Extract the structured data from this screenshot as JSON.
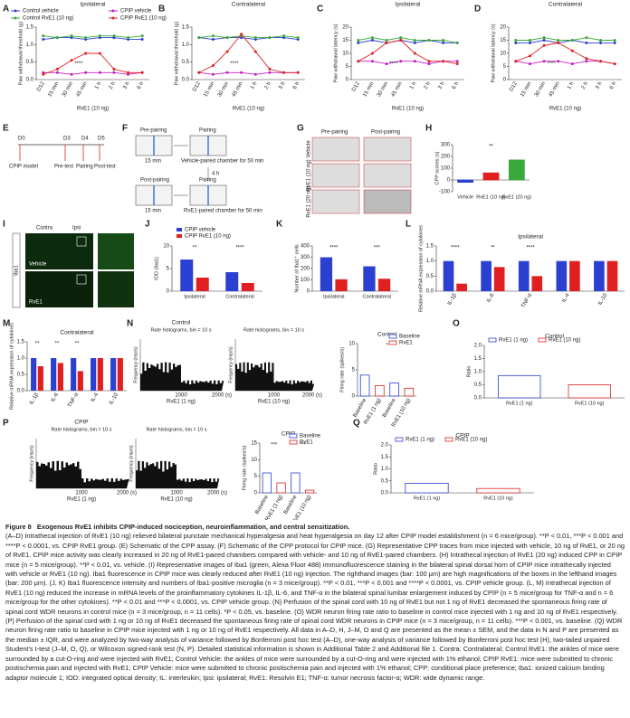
{
  "panel_letters": [
    "A",
    "B",
    "C",
    "D",
    "E",
    "F",
    "G",
    "H",
    "I",
    "J",
    "K",
    "L",
    "M",
    "N",
    "O",
    "P",
    "Q"
  ],
  "chart_data": [
    {
      "type": "line",
      "title": "Ipsilateral",
      "ylabel": "Paw withdrawal threshold (g)",
      "xlabel": "RvE1 (10 ng)",
      "categories": [
        "D12",
        "15 min",
        "30 min",
        "45 min",
        "1 h",
        "2 h",
        "3 h",
        "6 h"
      ],
      "ylim": [
        0,
        1.5
      ],
      "yticks": [
        {
          "value": 0,
          "label": "0.0"
        },
        {
          "value": 0.5,
          "label": "0.5"
        },
        {
          "value": 1,
          "label": "1.0"
        },
        {
          "value": 1.5,
          "label": "1.5"
        }
      ],
      "annotations": [
        "****"
      ],
      "series": [
        {
          "name": "Control vehicle",
          "color": "#2b3fd0",
          "values": [
            1.15,
            1.2,
            1.2,
            1.15,
            1.2,
            1.2,
            1.15,
            1.15
          ]
        },
        {
          "name": "Control RvE1 (10 ng)",
          "color": "#3aa83a",
          "values": [
            1.25,
            1.2,
            1.25,
            1.2,
            1.25,
            1.25,
            1.2,
            1.25
          ]
        },
        {
          "name": "CPIP vehicle",
          "color": "#c020c0",
          "values": [
            0.2,
            0.2,
            0.15,
            0.2,
            0.2,
            0.2,
            0.15,
            0.2
          ]
        },
        {
          "name": "CPIP RvE1 (10 ng)",
          "color": "#e02020",
          "values": [
            0.15,
            0.3,
            0.55,
            0.75,
            0.75,
            0.3,
            0.2,
            0.2
          ]
        }
      ]
    },
    {
      "type": "line",
      "title": "Contralateral",
      "ylabel": "Paw withdrawal threshold (g)",
      "xlabel": "RvE1 (10 ng)",
      "categories": [
        "D12",
        "15 min",
        "30 min",
        "45 min",
        "1 h",
        "2 h",
        "3 h",
        "6 h"
      ],
      "ylim": [
        0,
        1.5
      ],
      "yticks": [
        {
          "value": 0,
          "label": "0.0"
        },
        {
          "value": 0.5,
          "label": "0.5"
        },
        {
          "value": 1,
          "label": "1.0"
        },
        {
          "value": 1.5,
          "label": "1.5"
        }
      ],
      "annotations": [
        "****"
      ],
      "series": [
        {
          "color": "#2b3fd0",
          "values": [
            1.2,
            1.15,
            1.2,
            1.2,
            1.15,
            1.2,
            1.2,
            1.15
          ]
        },
        {
          "color": "#3aa83a",
          "values": [
            1.2,
            1.25,
            1.2,
            1.25,
            1.2,
            1.2,
            1.25,
            1.2
          ]
        },
        {
          "color": "#c020c0",
          "values": [
            0.2,
            0.15,
            0.2,
            0.2,
            0.15,
            0.2,
            0.2,
            0.2
          ]
        },
        {
          "color": "#e02020",
          "values": [
            0.2,
            0.4,
            0.8,
            1.3,
            0.8,
            0.3,
            0.2,
            0.2
          ]
        }
      ]
    },
    {
      "type": "line",
      "title": "Ipsilateral",
      "ylabel": "Paw withdrawal latency (s)",
      "xlabel": "RvE1 (10 ng)",
      "categories": [
        "D12",
        "15 min",
        "30 min",
        "45 min",
        "1 h",
        "2 h",
        "3 h",
        "6 h"
      ],
      "ylim": [
        0,
        20
      ],
      "yticks": [
        0,
        5,
        10,
        15,
        20
      ],
      "annotations": [
        "****"
      ],
      "series": [
        {
          "color": "#2b3fd0",
          "values": [
            14,
            15,
            14,
            15,
            14,
            15,
            14,
            14
          ]
        },
        {
          "color": "#3aa83a",
          "values": [
            15,
            16,
            15,
            16,
            15,
            15,
            15,
            14
          ]
        },
        {
          "color": "#c020c0",
          "values": [
            7,
            7,
            6,
            7,
            7,
            6,
            7,
            7
          ]
        },
        {
          "color": "#e02020",
          "values": [
            7,
            10,
            14,
            15,
            10,
            7,
            7,
            6
          ]
        }
      ]
    },
    {
      "type": "line",
      "title": "Contralateral",
      "ylabel": "Paw withdrawal latency (s)",
      "xlabel": "RvE1 (10 ng)",
      "categories": [
        "D12",
        "15 min",
        "30 min",
        "45 min",
        "1 h",
        "2 h",
        "3 h",
        "6 h"
      ],
      "ylim": [
        0,
        20
      ],
      "yticks": [
        0,
        5,
        10,
        15,
        20
      ],
      "annotations": [
        "****"
      ],
      "series": [
        {
          "color": "#2b3fd0",
          "values": [
            14,
            14,
            15,
            14,
            15,
            14,
            14,
            14
          ]
        },
        {
          "color": "#3aa83a",
          "values": [
            15,
            15,
            16,
            15,
            15,
            16,
            15,
            15
          ]
        },
        {
          "color": "#c020c0",
          "values": [
            7,
            6,
            7,
            7,
            6,
            7,
            7,
            6
          ]
        },
        {
          "color": "#e02020",
          "values": [
            7,
            9,
            13,
            14,
            11,
            8,
            7,
            6
          ]
        }
      ]
    },
    {
      "type": "bar",
      "ylabel": "CPP scores (s)",
      "categories": [
        "Vehicle",
        "RvE1 (10 ng)",
        "RvE1 (20 ng)"
      ],
      "values": [
        -20,
        60,
        170
      ],
      "colors": [
        "#2b3fd0",
        "#e02020",
        "#3aa83a"
      ],
      "ylim": [
        -100,
        300
      ],
      "yticks": [
        -100,
        0,
        100,
        200,
        300
      ],
      "annotations": [
        "**"
      ]
    },
    {
      "type": "bar",
      "ylabel": "IOD (Iba1)",
      "categories": [
        "Ipsilateral",
        "Contralateral"
      ],
      "ylim": [
        0,
        10
      ],
      "yticks": [
        0,
        5,
        10
      ],
      "annotations": [
        "**",
        "****"
      ],
      "series": [
        {
          "name": "CPIP vehicle",
          "color": "#2b3fd0",
          "values": [
            7,
            4.2
          ]
        },
        {
          "name": "CPIP RvE1 (10 ng)",
          "color": "#e02020",
          "values": [
            3,
            1.8
          ]
        }
      ]
    },
    {
      "type": "bar",
      "ylabel": "Number of Iba1⁺ cells",
      "categories": [
        "Ipsilateral",
        "Contralateral"
      ],
      "ylim": [
        0,
        400
      ],
      "yticks": [
        0,
        100,
        200,
        300,
        400
      ],
      "annotations": [
        "****",
        "***"
      ],
      "series": [
        {
          "color": "#2b3fd0",
          "values": [
            300,
            220
          ]
        },
        {
          "color": "#e02020",
          "values": [
            105,
            110
          ]
        }
      ]
    },
    {
      "type": "bar",
      "title": "Ipsilateral",
      "ylabel": "Relative mRNA expression of cytokines",
      "categories": [
        "IL-1β",
        "IL-6",
        "TNF-α",
        "IL-4",
        "IL-10"
      ],
      "ylim": [
        0,
        1.5
      ],
      "yticks": [
        {
          "value": 0,
          "label": "0.0"
        },
        {
          "value": 0.5,
          "label": "0.5"
        },
        {
          "value": 1,
          "label": "1.0"
        },
        {
          "value": 1.5,
          "label": "1.5"
        }
      ],
      "annotations": [
        "****",
        "**",
        "****"
      ],
      "series": [
        {
          "color": "#2b3fd0",
          "values": [
            1,
            1,
            1,
            1,
            1
          ]
        },
        {
          "color": "#e02020",
          "values": [
            0.25,
            0.8,
            0.5,
            1,
            1
          ]
        }
      ]
    },
    {
      "type": "bar",
      "title": "Contralateral",
      "ylabel": "Relative mRNA expression of cytokines",
      "categories": [
        "IL-1β",
        "IL-6",
        "TNF-α",
        "IL-4",
        "IL-10"
      ],
      "ylim": [
        0,
        1.5
      ],
      "yticks": [
        {
          "value": 0,
          "label": "0.0"
        },
        {
          "value": 0.5,
          "label": "0.5"
        },
        {
          "value": 1,
          "label": "1.0"
        },
        {
          "value": 1.5,
          "label": "1.5"
        }
      ],
      "annotations": [
        "**",
        "**",
        "**"
      ],
      "series": [
        {
          "color": "#2b3fd0",
          "values": [
            1,
            1,
            1,
            1,
            1
          ]
        },
        {
          "color": "#e02020",
          "values": [
            0.75,
            0.85,
            0.6,
            1,
            1
          ]
        }
      ]
    },
    {
      "type": "bar",
      "title": "Control",
      "ylabel": "Firing rate (spikes/s)",
      "categories": [
        "Baseline",
        "RvE1 (1 ng)",
        "Baseline",
        "RvE1 (10 ng)"
      ],
      "values": [
        4,
        2,
        2.5,
        1.5
      ],
      "colors": [
        "#2b3fd0",
        "#e02020",
        "#2b3fd0",
        "#e02020"
      ],
      "hollow": true,
      "ylim": [
        0,
        10
      ],
      "yticks": [
        0,
        5,
        10
      ],
      "annotations": [
        "*"
      ],
      "legend": [
        {
          "name": "Baseline",
          "color": "#2b3fd0"
        },
        {
          "name": "RvE1",
          "color": "#e02020"
        }
      ]
    },
    {
      "type": "bar",
      "title": "Control",
      "ylabel": "Ratio",
      "categories": [
        "RvE1 (1 ng)",
        "RvE1 (10 ng)"
      ],
      "values": [
        0.85,
        0.5
      ],
      "colors": [
        "#2b3fd0",
        "#e02020"
      ],
      "hollow": true,
      "ylim": [
        0,
        2
      ],
      "yticks": [
        {
          "value": 0,
          "label": "0.0"
        },
        {
          "value": 0.5,
          "label": "0.5"
        },
        {
          "value": 1,
          "label": "1.0"
        },
        {
          "value": 1.5,
          "label": "1.5"
        },
        {
          "value": 2,
          "label": "2.0"
        }
      ],
      "legend": [
        {
          "name": "RvE1 (1 ng)",
          "color": "#2b3fd0"
        },
        {
          "name": "RvE1 (10 ng)",
          "color": "#e02020"
        }
      ]
    },
    {
      "type": "bar",
      "title": "CPIP",
      "ylabel": "Firing rate (spikes/s)",
      "categories": [
        "Baseline",
        "RvE1 (1 ng)",
        "Baseline",
        "RvE1 (10 ng)"
      ],
      "values": [
        6,
        3,
        6,
        0.8
      ],
      "colors": [
        "#2b3fd0",
        "#e02020",
        "#2b3fd0",
        "#e02020"
      ],
      "hollow": true,
      "ylim": [
        0,
        15
      ],
      "yticks": [
        0,
        5,
        10,
        15
      ],
      "annotations": [
        "***",
        "***"
      ],
      "legend": [
        {
          "name": "Baseline",
          "color": "#2b3fd0"
        },
        {
          "name": "RvE1",
          "color": "#e02020"
        }
      ]
    },
    {
      "type": "bar",
      "title": "CPIP",
      "ylabel": "Ratio",
      "categories": [
        "RvE1 (1 ng)",
        "RvE1 (10 ng)"
      ],
      "values": [
        0.4,
        0.18
      ],
      "colors": [
        "#2b3fd0",
        "#e02020"
      ],
      "hollow": true,
      "ylim": [
        0,
        2
      ],
      "yticks": [
        {
          "value": 0,
          "label": "0.0"
        },
        {
          "value": 0.5,
          "label": "0.5"
        },
        {
          "value": 1,
          "label": "1.0"
        },
        {
          "value": 1.5,
          "label": "1.5"
        },
        {
          "value": 2,
          "label": "2.0"
        }
      ],
      "legend": [
        {
          "name": "RvE1 (1 ng)",
          "color": "#2b3fd0"
        },
        {
          "name": "RvE1 (10 ng)",
          "color": "#e02020"
        }
      ]
    }
  ],
  "histograms": [
    {
      "group": "Control",
      "title": "Rate histograms, bin = 10 s",
      "ylabel": "Frequency (imp/s)",
      "xticks": [
        "1000",
        "2000 (s)"
      ],
      "xlabel": "RvE1 (1 ng)"
    },
    {
      "group": "Control",
      "title": "Rate histograms, bin = 10 s",
      "ylabel": "Frequency (imp/s)",
      "xticks": [
        "1000",
        "2000 (s)"
      ],
      "xlabel": "RvE1 (10 ng)"
    },
    {
      "group": "CPIP",
      "title": "Rate histograms, bin = 10 s",
      "ylabel": "Frequency (imp/s)",
      "xticks": [
        "1000",
        "2000 (s)"
      ],
      "xlabel": "RvE1 (1 ng)"
    },
    {
      "group": "CPIP",
      "title": "Rate histograms, bin = 10 s",
      "ylabel": "Frequency (imp/s)",
      "xticks": [
        "1000",
        "2000 (s)"
      ],
      "xlabel": "RvE1 (10 ng)"
    }
  ],
  "diagrams": {
    "E": {
      "days": [
        "D0",
        "D3",
        "D4",
        "D5"
      ],
      "steps": [
        "CPIP model",
        "Pre-test",
        "Pairing",
        "Post-test"
      ]
    },
    "F": {
      "pre": "Pre-pairing",
      "pairing": "Pairing",
      "t1": "15 min",
      "vehicle": "Vehicle-paired chamber for 50 min",
      "gap": "4 h",
      "post": "Post-pairing",
      "pairing2": "Pairing",
      "t2": "15 min",
      "rve1": "RvE1-paired chamber for 50 min"
    },
    "G": {
      "cols": [
        "Pre-pairing",
        "Post-pairing"
      ],
      "rows": [
        "Vehicle",
        "RvE1 (10 ng)",
        "RvE1 (20 ng)"
      ]
    },
    "I": {
      "cols": [
        "Contra",
        "Ipsi"
      ],
      "stain": "Iba1",
      "rows": [
        "Vehicle",
        "RvE1"
      ]
    }
  },
  "caption": {
    "label": "Figure 8",
    "title": "Exogenous RvE1 inhibits CPIP-induced nociception, neuroinflammation, and central sensitization.",
    "body": "(A–D) Intrathecal injection of RvE1 (10 ng) relieved bilateral punctate mechanical hyperalgesia and heat hyperalgesia on day 12 after CPIP model establishment (n = 6 mice/group). **P < 0.01, ***P < 0.001 and ****P < 0.0001, vs. CPIP RvE1 group. (E) Schematic of the CPP assay. (F) Schematic of the CPP protocol for CPIP mice. (G) Representative CPP traces from mice injected with vehicle, 10 ng of RvE1, or 20 ng of RvE1. CPIP mice activity was clearly increased in 20 ng of RvE1-paired chambers compared with vehicle- and 10 ng of RvE1-paired chambers. (H) Intrathecal injection of RvE1 (20 ng) induced CPP in CPIP mice (n = 5 mice/group). **P < 0.01, vs. vehicle. (I) Representative images of Iba1 (green, Alexa Fluor 488) immunofluorescence staining in the bilateral spinal dorsal horn of CPIP mice intrathecally injected with vehicle or RvE1 (10 ng). Iba1 fluorescence in CPIP mice was clearly reduced after RvE1 (10 ng) injection. The righthand images (bar: 100 μm) are high magnifications of the boxes in the lefthand images (bar: 200 μm). (J, K) Iba1 fluorescence intensity and numbers of Iba1-positive microglia (n = 3 mice/group). **P < 0.01, ***P < 0.001 and ****P < 0.0001, vs. CPIP vehicle group. (L, M) Intrathecal injection of RvE1 (10 ng) reduced the increase in mRNA levels of the proinflammatory cytokines IL-1β, IL-6, and TNF-α in the bilateral spinal lumbar enlargement induced by CPIP (n = 5 mice/group for TNF-α and n = 6 mice/group for the other cytokines). **P < 0.01 and ***P < 0.0001, vs. CPIP vehicle group. (N) Perfusion of the spinal cord with 10 ng of RvE1 but not 1 ng of RvE1 decreased the spontaneous firing rate of spinal cord WDR neurons in control mice (n = 3 mice/group, n = 11 cells). *P < 0.05, vs. baseline. (O) WDR neuron firing rate ratio to baseline in control mice injected with 1 ng and 10 ng of RvE1 respectively. (P) Perfusion of the spinal cord with 1 ng or 10 ng of RvE1 decreased the spontaneous firing rate of spinal cord WDR neurons in CPIP mice (n = 3 mice/group, n = 11 cells). ***P < 0.001, vs. baseline. (Q) WDR neuron firing rate ratio to baseline in CPIP mice injected with 1 ng or 10 ng of RvE1 respectively. All data in A–D, H, J–M, O and Q are presented as the mean ± SEM, and the data in N and P are presented as the median ± IQR, and were analyzed by two-way analysis of variance followed by Bonferroni post hoc test (A–D), one-way analysis of variance followed by Bonferroni post hoc test (H), two-tailed unpaired Student's t-test (J–M, O, Q), or Wilcoxon signed-rank test (N, P). Detailed statistical information is shown in Additional Table 2 and Additional file 1. Contra: Contralateral; Control RvE1: the ankles of mice were surrounded by a cut-O-ring and were injected with RvE1; Control Vehicle: the ankles of mice were surrounded by a cut-O-ring and were injected with 1% ethanol; CPIP RvE1: mice were submitted to chronic postischemia pain and injected with RvE1; CPIP Vehicle: mice were submitted to chronic postischemia pain and injected with 1% ethanol; CPP: conditional place preference; Iba1: ionized calcium binding adaptor molecule 1; IOD: integrated optical density; IL: interleukin; Ipsi: ipsilateral; RvE1: Resolvin E1; TNF-α: tumor necrosis factor-α; WDR: wide dynamic range."
  }
}
